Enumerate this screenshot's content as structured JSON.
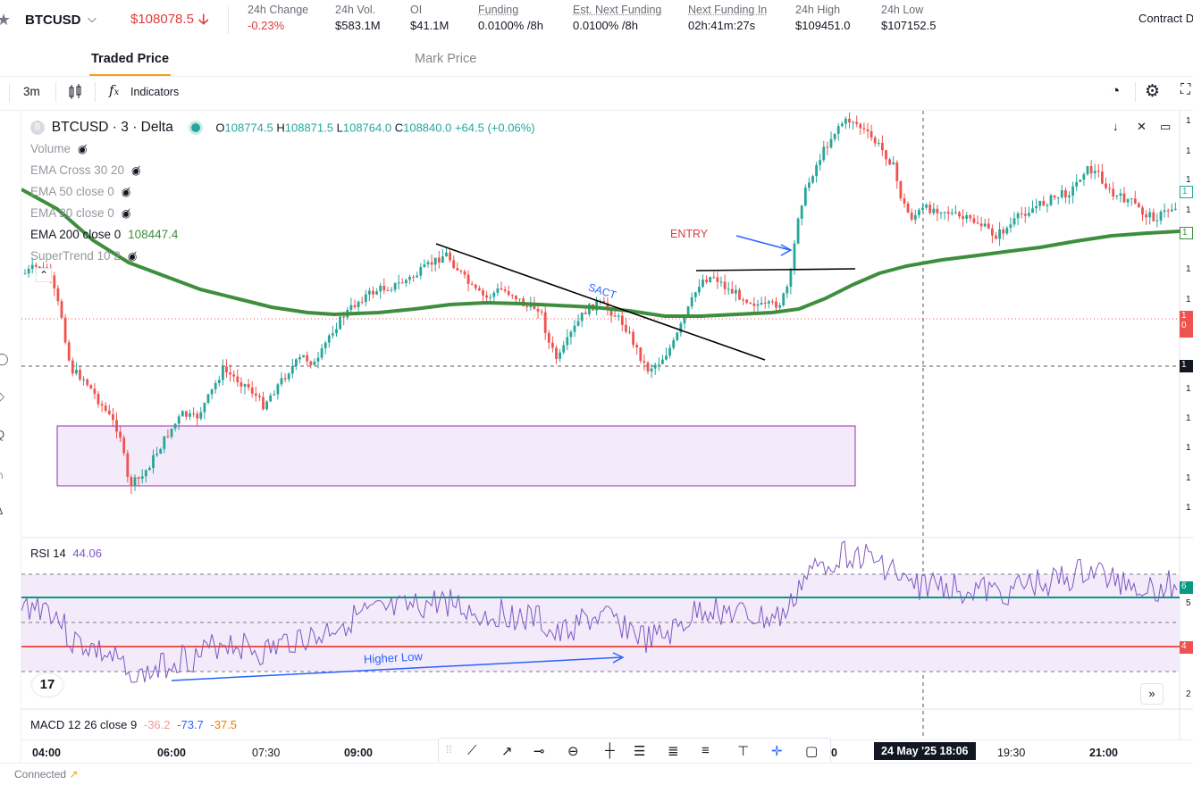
{
  "header": {
    "symbol": "BTCUSD",
    "price": "$108078.5",
    "price_arrow": "🡣",
    "stats": [
      {
        "label": "24h Change",
        "value": "-0.23%",
        "value_color": "#e03c3c",
        "underline": false
      },
      {
        "label": "24h Vol.",
        "value": "$583.1M",
        "underline": false
      },
      {
        "label": "OI",
        "value": "$41.1M",
        "underline": false
      },
      {
        "label": "Funding",
        "value": "0.0100% /8h",
        "underline": true
      },
      {
        "label": "Est. Next Funding",
        "value": "0.0100% /8h",
        "underline": true
      },
      {
        "label": "Next Funding In",
        "value": "02h:41m:27s",
        "underline": true
      },
      {
        "label": "24h High",
        "value": "$109451.0",
        "underline": false
      },
      {
        "label": "24h Low",
        "value": "$107152.5",
        "underline": false
      }
    ],
    "contract_label": "Contract D"
  },
  "tabs": {
    "active": "Traded Price",
    "inactive": "Mark Price"
  },
  "toolbar": {
    "interval": "3m",
    "indicators_label": "Indicators"
  },
  "chart": {
    "title": "BTCUSD · 3 · Delta",
    "ohlc": {
      "o_label": "O",
      "o": "108774.5",
      "h_label": "H",
      "h": "108871.5",
      "l_label": "L",
      "l": "108764.0",
      "c_label": "C",
      "c": "108840.0",
      "change": "+64.5 (+0.06%)"
    },
    "indicators": [
      {
        "label": "Volume",
        "value": "",
        "visible": false
      },
      {
        "label": "EMA Cross 30 20",
        "value": "",
        "visible": false
      },
      {
        "label": "EMA 50 close 0",
        "value": "",
        "visible": false
      },
      {
        "label": "EMA 20 close 0",
        "value": "",
        "visible": false
      },
      {
        "label": "EMA 200 close 0",
        "value": "108447.4",
        "visible": true
      },
      {
        "label": "SuperTrend 10 2",
        "value": "",
        "visible": false
      }
    ],
    "annotations": {
      "entry": "ENTRY",
      "sact": "SACT",
      "higher_low": "Higher Low"
    },
    "rsi": {
      "label": "RSI",
      "period": "14",
      "value": "44.06"
    },
    "macd": {
      "label": "MACD",
      "params": "12 26 close 9",
      "v1": "-36.2",
      "v2": "-73.7",
      "v3": "-37.5"
    },
    "x_axis": [
      "04:00",
      "06:00",
      "07:30",
      "09:00",
      "0",
      "19:30",
      "21:00"
    ],
    "crosshair_time": "24 May '25   18:06",
    "colors": {
      "up": "#26a69a",
      "down": "#ef5350",
      "ema": "#3e8e3e",
      "rsi": "#7e57c2"
    }
  },
  "status": {
    "connection": "Connected"
  }
}
